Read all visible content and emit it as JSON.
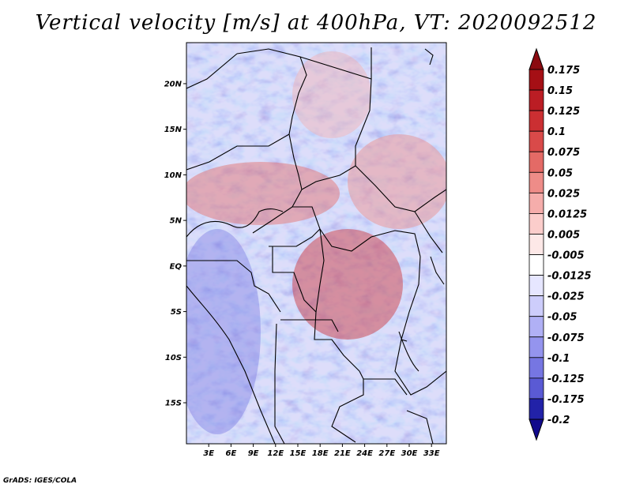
{
  "title": "Vertical velocity [m/s] at 400hPa, VT: 2020092512",
  "credit": "GrADS: IGES/COLA",
  "map": {
    "lat_range": [
      -19.5,
      24.5
    ],
    "lon_range": [
      0,
      35
    ],
    "lat_ticks": [
      {
        "value": 20,
        "label": "20N"
      },
      {
        "value": 15,
        "label": "15N"
      },
      {
        "value": 10,
        "label": "10N"
      },
      {
        "value": 5,
        "label": "5N"
      },
      {
        "value": 0,
        "label": "EQ"
      },
      {
        "value": -5,
        "label": "5S"
      },
      {
        "value": -10,
        "label": "10S"
      },
      {
        "value": -15,
        "label": "15S"
      }
    ],
    "lon_ticks": [
      {
        "value": 3,
        "label": "3E"
      },
      {
        "value": 6,
        "label": "6E"
      },
      {
        "value": 9,
        "label": "9E"
      },
      {
        "value": 12,
        "label": "12E"
      },
      {
        "value": 15,
        "label": "15E"
      },
      {
        "value": 18,
        "label": "18E"
      },
      {
        "value": 21,
        "label": "21E"
      },
      {
        "value": 24,
        "label": "24E"
      },
      {
        "value": 27,
        "label": "27E"
      },
      {
        "value": 30,
        "label": "30E"
      },
      {
        "value": 33,
        "label": "33E"
      }
    ]
  },
  "colorbar": {
    "levels": [
      {
        "label": "0.175",
        "color": "#a50f15"
      },
      {
        "label": "0.15",
        "color": "#bb1d24"
      },
      {
        "label": "0.125",
        "color": "#cb2f32"
      },
      {
        "label": "0.1",
        "color": "#d94a49"
      },
      {
        "label": "0.075",
        "color": "#e46a66"
      },
      {
        "label": "0.05",
        "color": "#ee8c88"
      },
      {
        "label": "0.025",
        "color": "#f5adab"
      },
      {
        "label": "0.0125",
        "color": "#fbcdcb"
      },
      {
        "label": "0.005",
        "color": "#fde8e7"
      },
      {
        "label": "-0.005",
        "color": "#ffffff"
      },
      {
        "label": "-0.0125",
        "color": "#e6e6ff"
      },
      {
        "label": "-0.025",
        "color": "#cdcdfb"
      },
      {
        "label": "-0.05",
        "color": "#b0b0f5"
      },
      {
        "label": "-0.075",
        "color": "#9494ee"
      },
      {
        "label": "-0.1",
        "color": "#7676e2"
      },
      {
        "label": "-0.125",
        "color": "#5a5ad4"
      },
      {
        "label": "-0.175",
        "color": "#3b3bc0"
      },
      {
        "label": "-0.2",
        "color": "#2222a8"
      }
    ],
    "top_arrow_color": "#8b0a10",
    "bottom_arrow_color": "#120a8c"
  }
}
